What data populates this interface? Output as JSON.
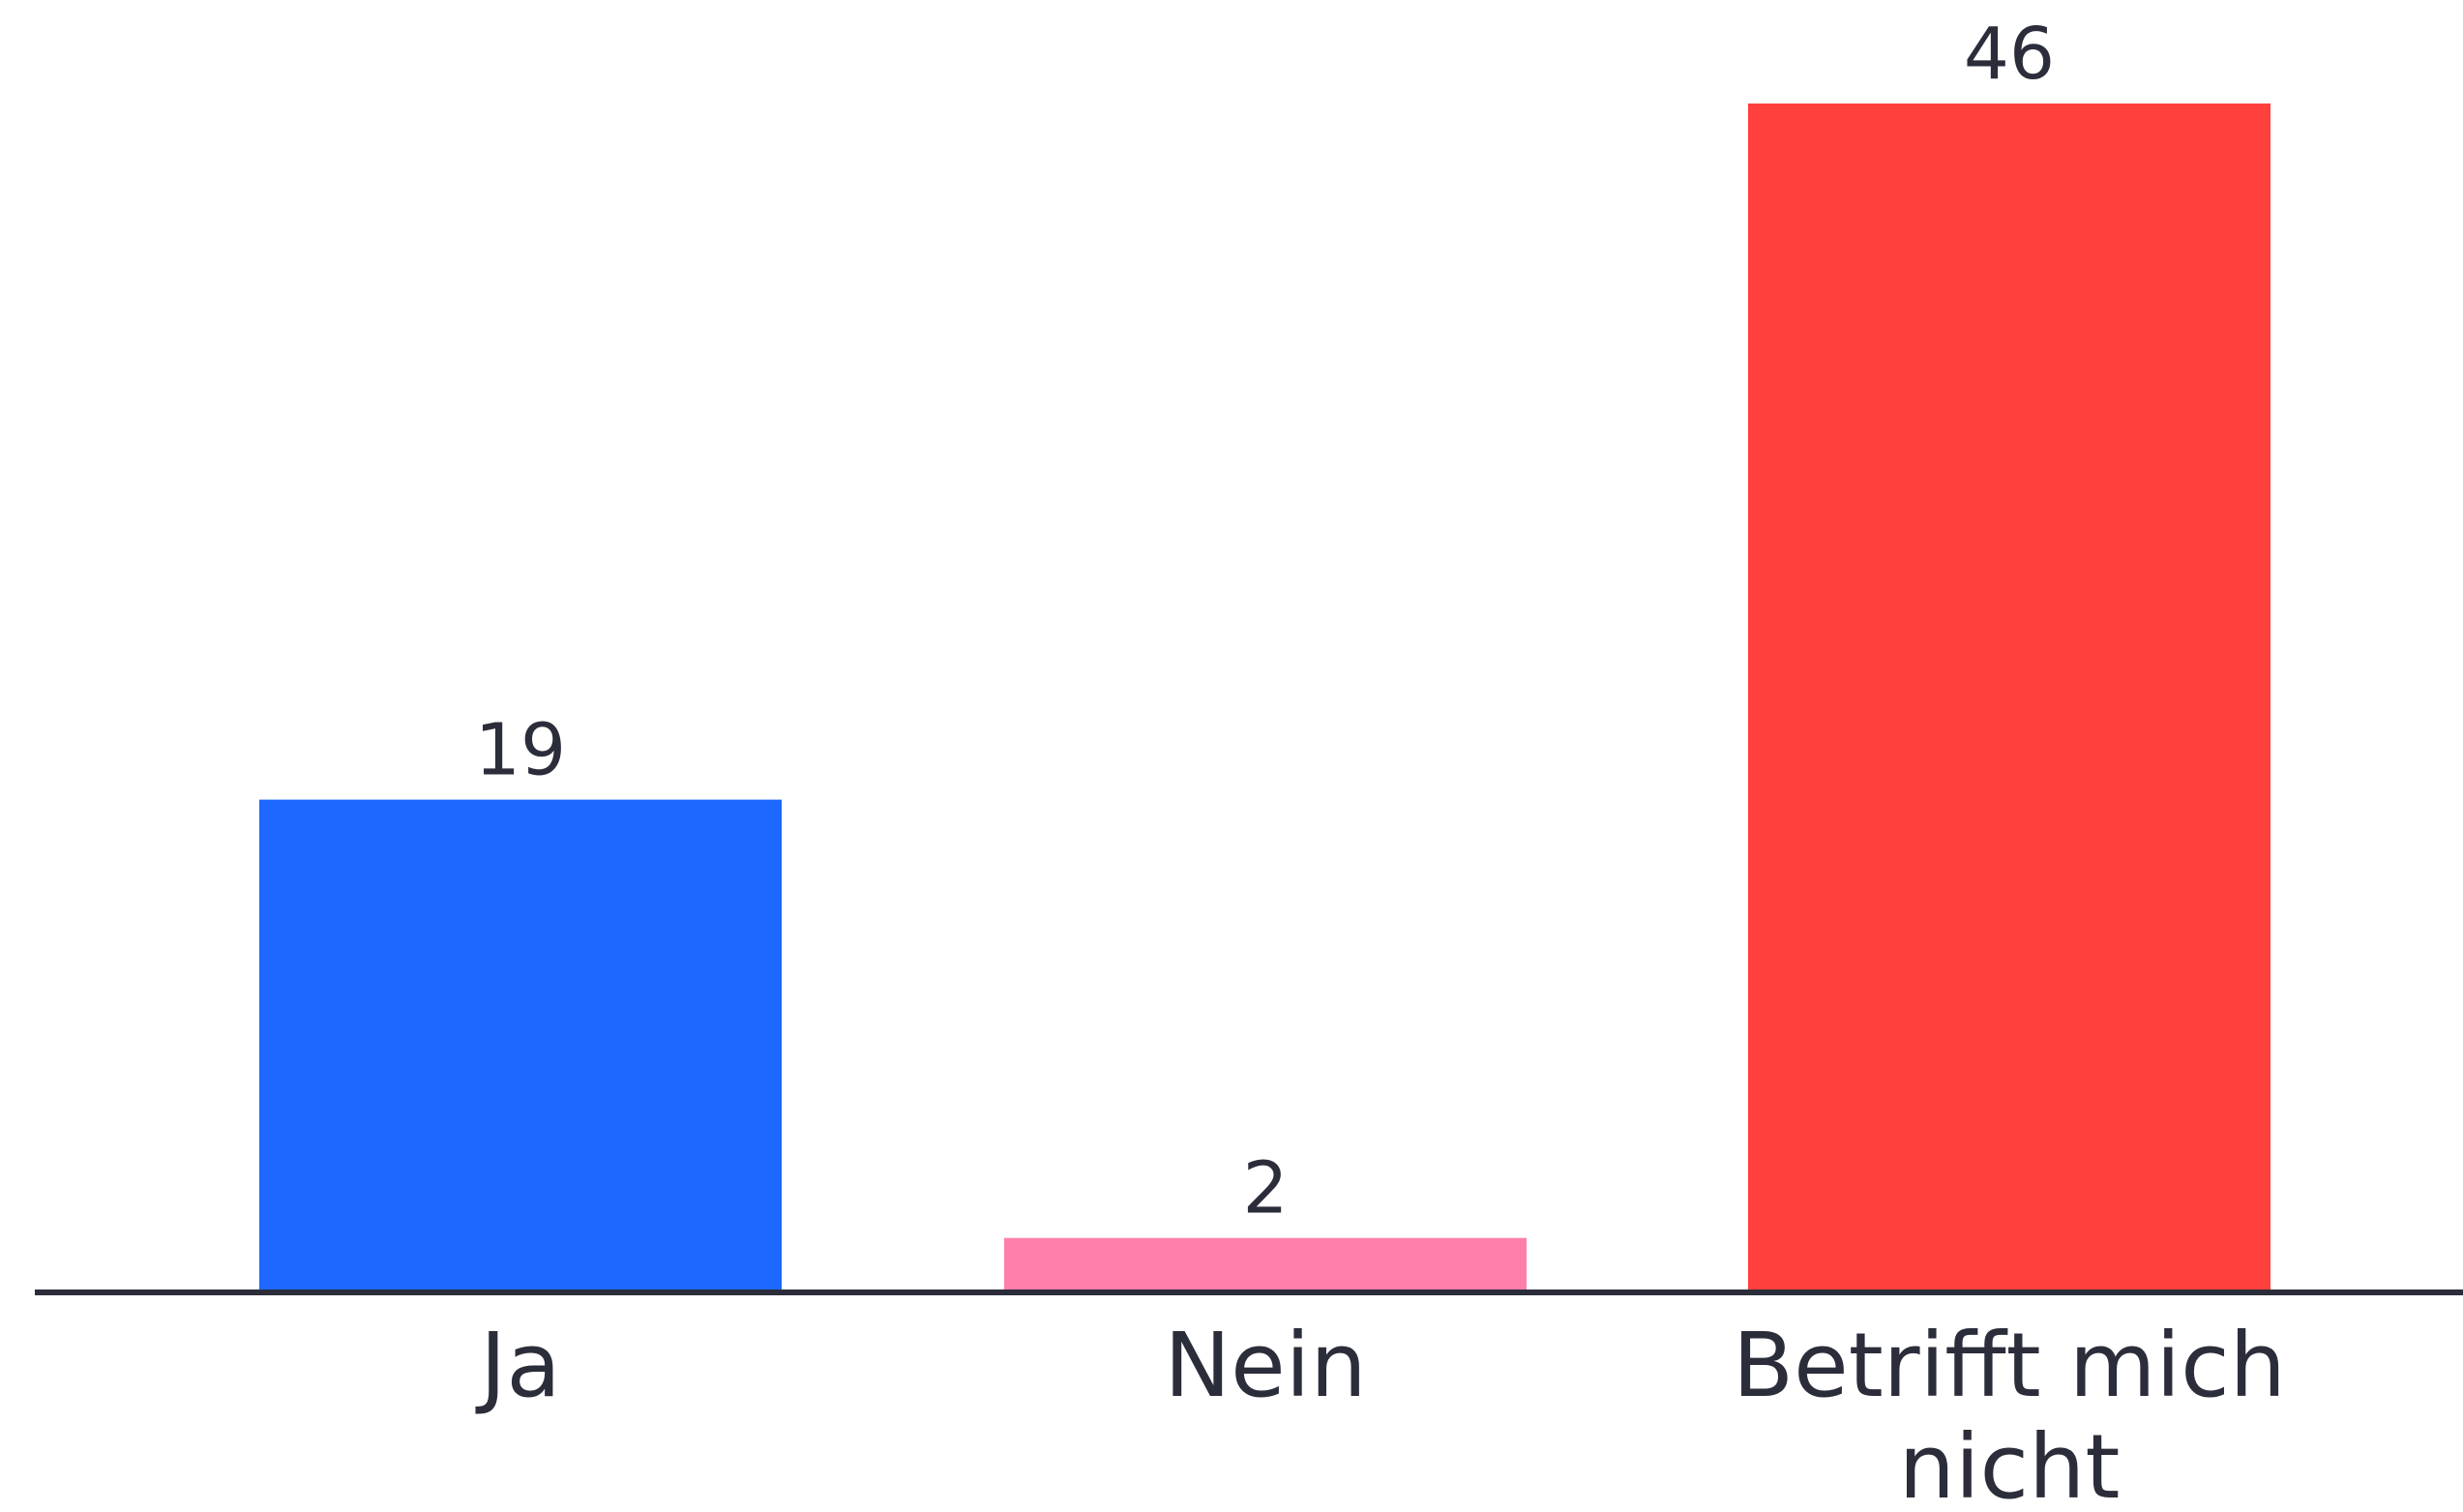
{
  "chart_data": {
    "type": "bar",
    "categories": [
      "Ja",
      "Nein",
      "Betrifft mich nicht"
    ],
    "values": [
      19,
      2,
      46
    ],
    "colors": [
      "#1d69ff",
      "#ff7fab",
      "#ff403d"
    ],
    "data_labels": [
      "19",
      "2",
      "46"
    ],
    "title": "",
    "xlabel": "",
    "ylabel": "",
    "ylim": [
      0,
      46
    ],
    "grid": false,
    "legend": "none"
  }
}
